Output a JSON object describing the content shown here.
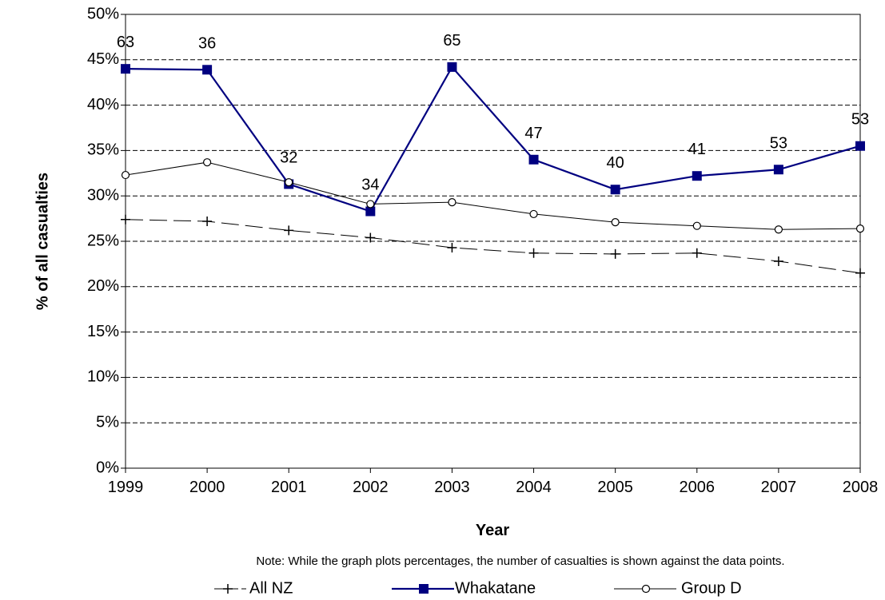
{
  "chart_data": {
    "type": "line",
    "xlabel": "Year",
    "ylabel": "% of all casualties",
    "note": "Note: While the graph plots percentages, the number of casualties is shown against the data points.",
    "ylim": [
      0,
      50
    ],
    "yticks": [
      "0%",
      "5%",
      "10%",
      "15%",
      "20%",
      "25%",
      "30%",
      "35%",
      "40%",
      "45%",
      "50%"
    ],
    "categories": [
      "1999",
      "2000",
      "2001",
      "2002",
      "2003",
      "2004",
      "2005",
      "2006",
      "2007",
      "2008"
    ],
    "grid": "horizontal dashed",
    "legend_position": "bottom",
    "series": [
      {
        "name": "All NZ",
        "color": "#000000",
        "marker": "plus",
        "line_style": "dashed",
        "values": [
          27.4,
          27.2,
          26.2,
          25.4,
          24.3,
          23.7,
          23.6,
          23.7,
          22.8,
          21.5
        ]
      },
      {
        "name": "Whakatane",
        "color": "#000080",
        "marker": "square",
        "line_style": "solid",
        "values": [
          44.0,
          43.9,
          31.3,
          28.3,
          44.2,
          34.0,
          30.7,
          32.2,
          32.9,
          35.5
        ],
        "data_labels": [
          "63",
          "36",
          "32",
          "34",
          "65",
          "47",
          "40",
          "41",
          "53",
          "53"
        ]
      },
      {
        "name": "Group D",
        "color": "#000000",
        "marker": "circle",
        "line_style": "solid",
        "values": [
          32.3,
          33.7,
          31.5,
          29.1,
          29.3,
          28.0,
          27.1,
          26.7,
          26.3,
          26.4
        ]
      }
    ]
  }
}
